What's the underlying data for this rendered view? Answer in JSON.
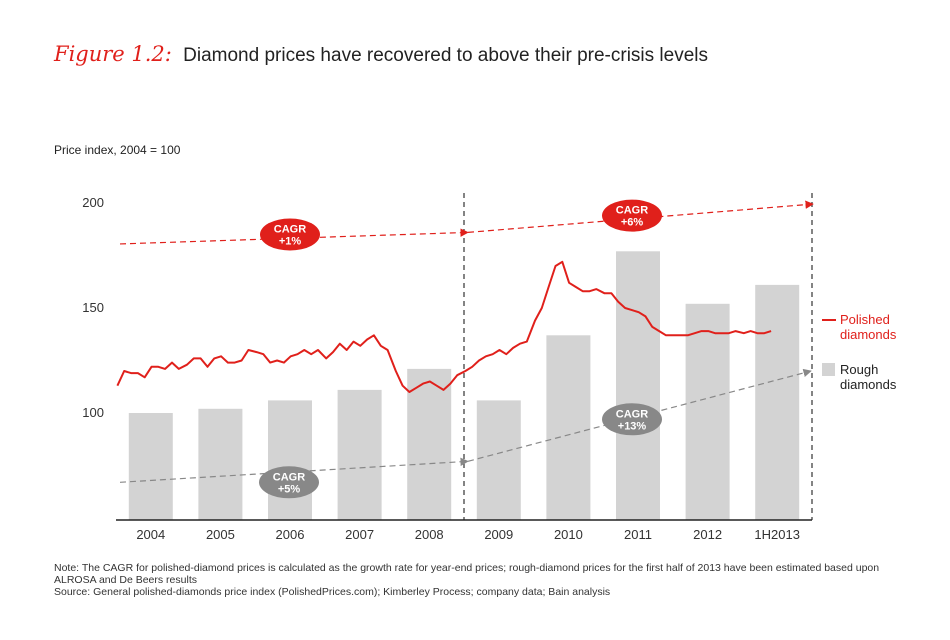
{
  "figure": {
    "label": "Figure 1.2:",
    "title": "Diamond prices have recovered to above their pre-crisis levels"
  },
  "chart_data": {
    "type": "bar",
    "ylabel": "Price index, 2004 = 100",
    "ylim": [
      50,
      200
    ],
    "yticks": [
      100,
      150,
      200
    ],
    "categories": [
      "2004",
      "2005",
      "2006",
      "2007",
      "2008",
      "2009",
      "2010",
      "2011",
      "2012",
      "1H2013"
    ],
    "series": [
      {
        "name": "Rough diamonds",
        "type": "bar",
        "color": "#d3d3d3",
        "values": [
          100,
          102,
          106,
          111,
          121,
          106,
          137,
          177,
          152,
          161
        ]
      },
      {
        "name": "Polished diamonds",
        "type": "line",
        "color": "#e0201b",
        "x": [
          2004.0,
          2004.1,
          2004.2,
          2004.3,
          2004.4,
          2004.5,
          2004.6,
          2004.7,
          2004.8,
          2004.9,
          2005.0,
          2005.1,
          2005.2,
          2005.3,
          2005.4,
          2005.5,
          2005.6,
          2005.7,
          2005.8,
          2005.9,
          2006.0,
          2006.1,
          2006.2,
          2006.3,
          2006.4,
          2006.5,
          2006.6,
          2006.7,
          2006.8,
          2006.9,
          2007.0,
          2007.1,
          2007.2,
          2007.3,
          2007.4,
          2007.5,
          2007.6,
          2007.7,
          2007.8,
          2007.9,
          2008.0,
          2008.1,
          2008.2,
          2008.3,
          2008.4,
          2008.5,
          2008.6,
          2008.7,
          2008.8,
          2008.9,
          2009.0,
          2009.1,
          2009.2,
          2009.3,
          2009.4,
          2009.5,
          2009.6,
          2009.7,
          2009.8,
          2009.9,
          2010.0,
          2010.1,
          2010.2,
          2010.3,
          2010.4,
          2010.5,
          2010.6,
          2010.7,
          2010.8,
          2010.9,
          2011.0,
          2011.1,
          2011.2,
          2011.3,
          2011.4,
          2011.5,
          2011.6,
          2011.7,
          2011.8,
          2011.9,
          2012.0,
          2012.1,
          2012.2,
          2012.3,
          2012.4,
          2012.5,
          2012.6,
          2012.7,
          2012.8,
          2012.9,
          2013.0,
          2013.1,
          2013.2,
          2013.3,
          2013.4
        ],
        "values": [
          113,
          120,
          119,
          119,
          117,
          122,
          122,
          121,
          124,
          121,
          123,
          126,
          126,
          122,
          126,
          127,
          124,
          124,
          125,
          130,
          129,
          128,
          124,
          125,
          124,
          127,
          128,
          130,
          128,
          130,
          126,
          129,
          133,
          130,
          134,
          132,
          135,
          137,
          132,
          130,
          120,
          113,
          110,
          112,
          114,
          115,
          113,
          111,
          114,
          118,
          120,
          122,
          125,
          127,
          128,
          130,
          128,
          131,
          133,
          134,
          144,
          150,
          160,
          170,
          172,
          162,
          160,
          158,
          158,
          159,
          157,
          157,
          153,
          150,
          149,
          148,
          146,
          141,
          139,
          137,
          137,
          137,
          137,
          138,
          139,
          139,
          138,
          138,
          138,
          139,
          138,
          139,
          138,
          138,
          139
        ]
      }
    ],
    "annotations": [
      {
        "label": "CAGR\n+1%",
        "text": "CAGR",
        "value": "+1%"
      },
      {
        "label": "CAGR\n+5%",
        "text": "CAGR",
        "value": "+5%"
      },
      {
        "label": "CAGR\n+6%",
        "text": "CAGR",
        "value": "+6%"
      },
      {
        "label": "CAGR\n+13%",
        "text": "CAGR",
        "value": "+13%"
      }
    ],
    "legend": {
      "placement": "right",
      "polished": [
        "Polished",
        "diamonds"
      ],
      "rough": [
        "Rough",
        "diamonds"
      ]
    }
  },
  "footnote": {
    "note": "Note:  The CAGR for polished-diamond prices is calculated as the growth rate for year-end prices; rough-diamond prices for the first half of 2013 have been estimated based upon ALROSA and De Beers results",
    "source": "Source:  General polished-diamonds price index (PolishedPrices.com); Kimberley Process; company data; Bain analysis"
  },
  "colors": {
    "accent_red": "#e0201b",
    "gray_bubble": "#888888",
    "bar": "#d3d3d3"
  }
}
